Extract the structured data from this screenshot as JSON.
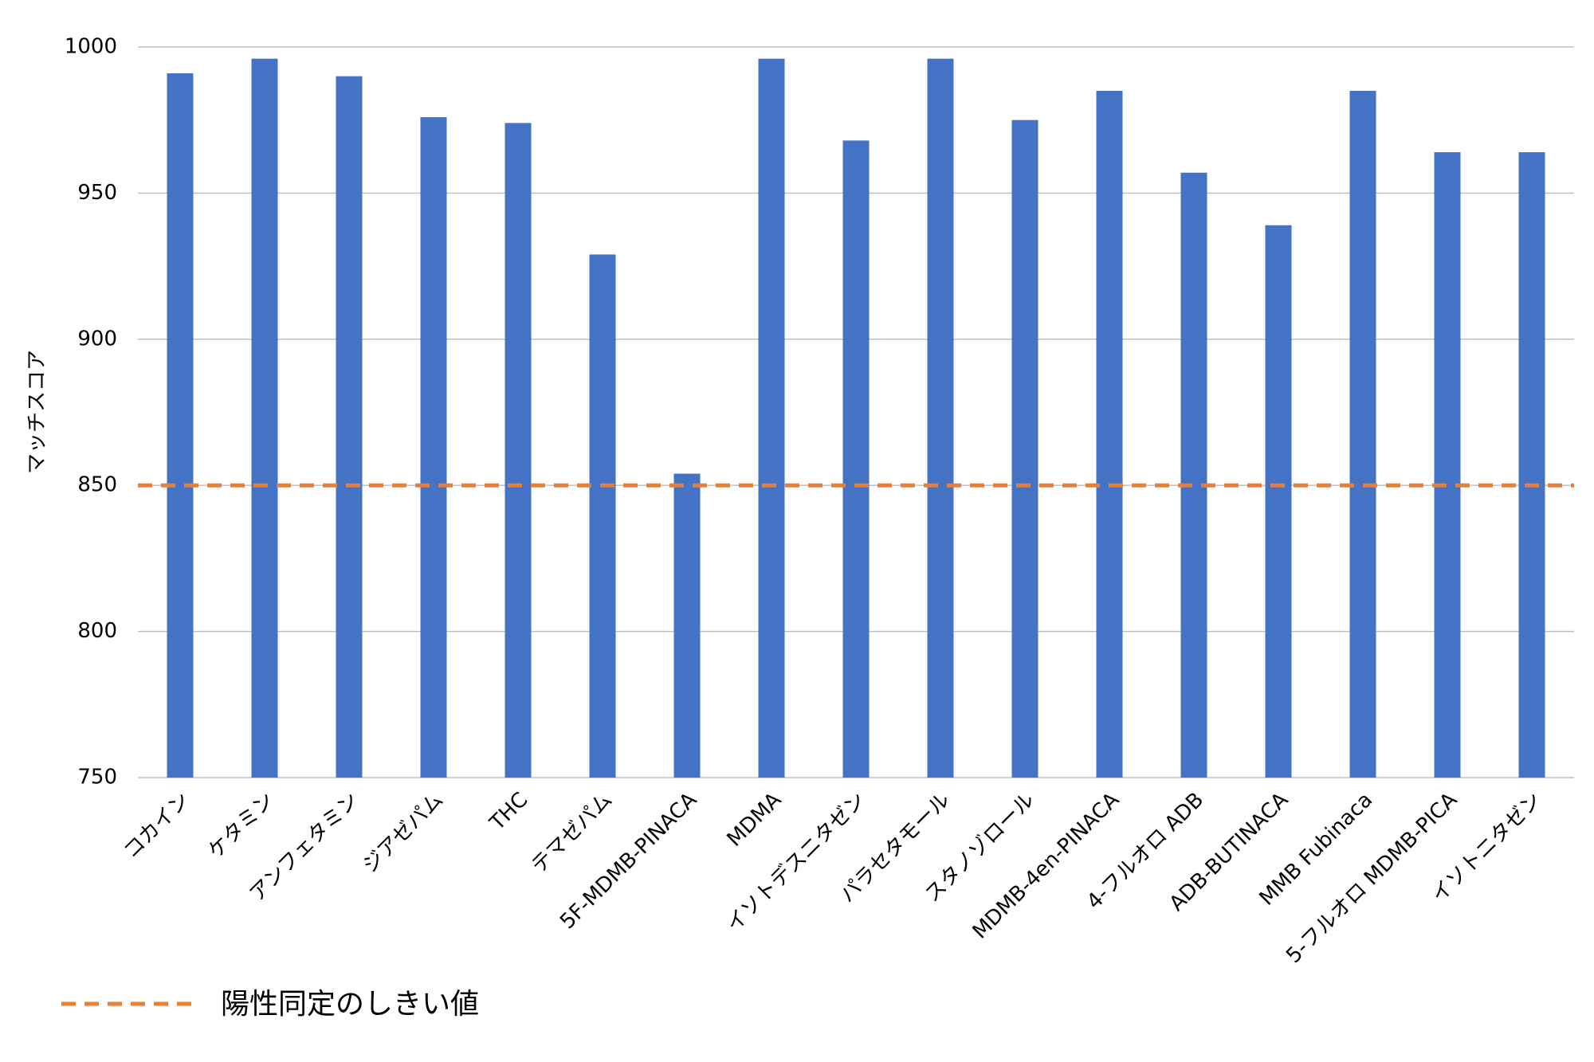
{
  "chart_data": {
    "type": "bar",
    "y_label": "マッチスコア",
    "categories": [
      "コカイン",
      "ケタミン",
      "アンフェタミン",
      "ジアゼパム",
      "THC",
      "テマゼパム",
      "5F-MDMB-PINACA",
      "MDMA",
      "イソトデスニタゼン",
      "パラセタモール",
      "スタノゾロール",
      "MDMB-4en-PINACA",
      "4-フルオロ ADB",
      "ADB-BUTINACA",
      "MMB Fubinaca",
      "5-フルオロ MDMB-PICA",
      "イソトニタゼン"
    ],
    "values": [
      991,
      996,
      990,
      976,
      974,
      929,
      854,
      996,
      968,
      996,
      975,
      985,
      957,
      939,
      985,
      964,
      964
    ],
    "color": "#4472c4",
    "threshold": {
      "name": "陽性同定のしきい値",
      "value": 850,
      "color": "#ed7d31"
    },
    "ylim": [
      750,
      1000
    ],
    "yticks": [
      750,
      800,
      850,
      900,
      950,
      1000
    ],
    "grid": true
  }
}
